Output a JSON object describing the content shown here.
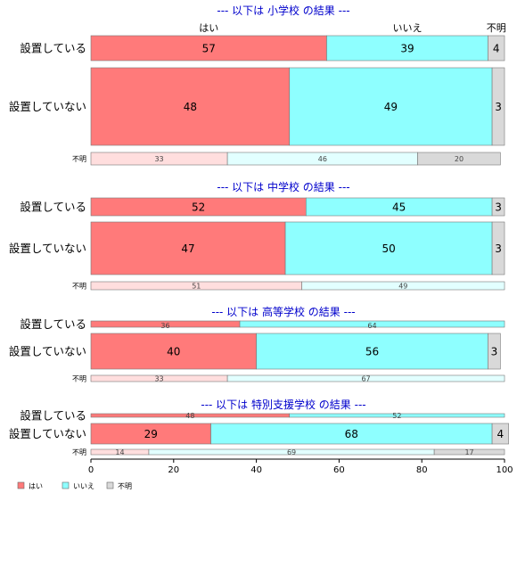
{
  "column_labels": {
    "yes": "はい",
    "no": "いいえ",
    "unknown": "不明"
  },
  "colors": {
    "yes": "#ff7a7a",
    "no": "#8effff",
    "unknown": "#d9d9d9",
    "yes_light": "#ffdede",
    "no_light": "#e2ffff",
    "title": "#0000cc"
  },
  "chart_data": {
    "type": "bar",
    "orientation": "horizontal-stacked-percent",
    "xlim": [
      0,
      100
    ],
    "x_ticks": [
      "0",
      "20",
      "40",
      "60",
      "80",
      "100"
    ],
    "legend": [
      "はい",
      "いいえ",
      "不明"
    ],
    "legend_position": "bottom-left",
    "panels": [
      {
        "title": "--- 以下は 小学校 の結果 ---",
        "rows": [
          {
            "label": "設置している",
            "values": [
              57,
              39,
              4
            ]
          },
          {
            "label": "設置していない",
            "values": [
              48,
              49,
              3
            ]
          },
          {
            "label": "不明",
            "values": [
              33,
              46,
              20
            ]
          }
        ]
      },
      {
        "title": "--- 以下は 中学校 の結果 ---",
        "rows": [
          {
            "label": "設置している",
            "values": [
              52,
              45,
              3
            ]
          },
          {
            "label": "設置していない",
            "values": [
              47,
              50,
              3
            ]
          },
          {
            "label": "不明",
            "values": [
              51,
              49,
              0
            ]
          }
        ]
      },
      {
        "title": "--- 以下は 高等学校 の結果 ---",
        "rows": [
          {
            "label": "設置している",
            "values": [
              36,
              64,
              0
            ]
          },
          {
            "label": "設置していない",
            "values": [
              40,
              56,
              3
            ]
          },
          {
            "label": "不明",
            "values": [
              33,
              67,
              0
            ]
          }
        ]
      },
      {
        "title": "--- 以下は 特別支援学校 の結果 ---",
        "rows": [
          {
            "label": "設置している",
            "values": [
              48,
              52,
              0
            ]
          },
          {
            "label": "設置していない",
            "values": [
              29,
              68,
              4
            ]
          },
          {
            "label": "不明",
            "values": [
              14,
              69,
              17
            ]
          }
        ]
      }
    ]
  }
}
